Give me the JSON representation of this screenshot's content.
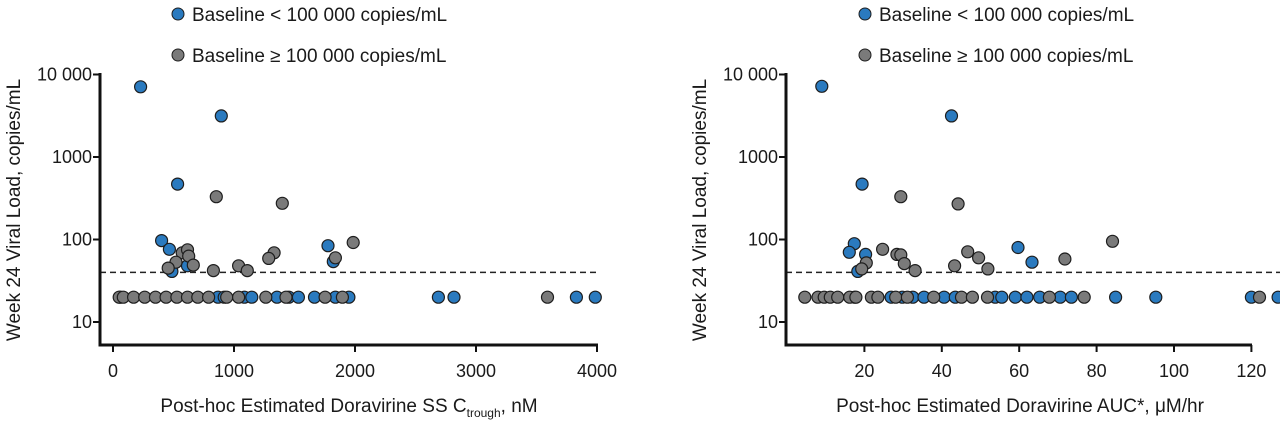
{
  "colors": {
    "below": "#2a7abf",
    "above": "#7a7a7a",
    "outline": "#1e1e1e"
  },
  "chart_data": [
    {
      "type": "scatter",
      "ylabel": "Week 24 Viral Load, copies/mL",
      "xlabel_prefix": "Post-hoc Estimated Doravirine SS C",
      "xlabel_sub": "trough",
      "xlabel_suffix": ", nM",
      "yscale": "log",
      "ylim": [
        5.2,
        10000
      ],
      "xlim": [
        -100,
        4000
      ],
      "xticks": [
        0,
        1000,
        2000,
        3000,
        4000
      ],
      "xtick_labels": [
        "0",
        "1000",
        "2000",
        "3000",
        "4000"
      ],
      "yticks": [
        10,
        100,
        1000,
        10000
      ],
      "ytick_labels": [
        "10",
        "100",
        "1000",
        "10 000"
      ],
      "reference_line": 40,
      "legend": [
        "Baseline < 100 000 copies/mL",
        "Baseline ≥ 100 000 copies/mL"
      ],
      "legend_position": "top",
      "series": [
        {
          "name": "Baseline < 100 000 copies/mL",
          "color_key": "below",
          "x": [
            228,
            895,
            534,
            402,
            466,
            1777,
            1821,
            616,
            487,
            60,
            868,
            919,
            1086,
            1147,
            1355,
            1454,
            1532,
            1665,
            1838,
            1950,
            2689,
            2818,
            3830,
            3986
          ],
          "y": [
            7100,
            3150,
            470,
            97,
            76,
            84,
            54,
            48,
            41,
            20,
            20,
            20,
            20,
            20,
            20,
            20,
            20,
            20,
            20,
            20,
            20,
            20,
            20,
            20
          ]
        },
        {
          "name": "Baseline ≥ 100 000 copies/mL",
          "color_key": "above",
          "x": [
            854,
            1399,
            1985,
            1331,
            1287,
            1838,
            572,
            616,
            626,
            664,
            521,
            456,
            830,
            1038,
            1110,
            51,
            85,
            170,
            262,
            351,
            439,
            528,
            616,
            701,
            790,
            940,
            1038,
            1263,
            1430,
            1753,
            1896,
            3591
          ],
          "y": [
            330,
            275,
            92,
            69,
            59,
            60,
            69,
            75,
            63,
            49,
            53,
            45,
            42,
            48,
            42,
            20,
            20,
            20,
            20,
            20,
            20,
            20,
            20,
            20,
            20,
            20,
            20,
            20,
            20,
            20,
            20,
            20
          ]
        }
      ]
    },
    {
      "type": "scatter",
      "ylabel": "Week 24 Viral Load, copies/mL",
      "xlabel_prefix": "Post-hoc Estimated Doravirine AUC*, μM/hr",
      "xlabel_sub": "",
      "xlabel_suffix": "",
      "yscale": "log",
      "ylim": [
        5.2,
        10000
      ],
      "xlim": [
        0,
        120
      ],
      "xticks": [
        20,
        40,
        60,
        80,
        100,
        120
      ],
      "xtick_labels": [
        "20",
        "40",
        "60",
        "80",
        "100",
        "120"
      ],
      "yticks": [
        10,
        100,
        1000,
        10000
      ],
      "ytick_labels": [
        "10",
        "100",
        "1000",
        "10 000"
      ],
      "reference_line": 40,
      "legend": [
        "Baseline < 100 000 copies/mL",
        "Baseline ≥ 100 000 copies/mL"
      ],
      "legend_position": "top",
      "series": [
        {
          "name": "Baseline < 100 000 copies/mL",
          "color_key": "below",
          "x": [
            9.0,
            42.5,
            19.4,
            17.4,
            59.7,
            16.1,
            20.3,
            63.3,
            18.3,
            17.5,
            26.9,
            29.8,
            32.5,
            35.4,
            40.6,
            43.5,
            53.8,
            55.5,
            59.0,
            62.0,
            65.3,
            70.6,
            73.5,
            84.9,
            95.3,
            120.0,
            126.9
          ],
          "y": [
            7200,
            3150,
            470,
            89,
            80,
            70,
            66,
            53,
            41,
            20,
            20,
            20,
            20,
            20,
            20,
            20,
            20,
            20,
            20,
            20,
            20,
            20,
            20,
            20,
            20,
            20,
            20
          ]
        },
        {
          "name": "Baseline ≥ 100 000 copies/mL",
          "color_key": "above",
          "x": [
            29.4,
            44.2,
            84.1,
            24.7,
            28.4,
            29.4,
            46.7,
            49.5,
            71.8,
            20.5,
            30.3,
            43.3,
            51.9,
            33.1,
            19.3,
            4.6,
            8.0,
            9.6,
            11.2,
            13.1,
            16.2,
            17.8,
            21.8,
            23.5,
            28.1,
            31.1,
            37.9,
            45.1,
            47.9,
            51.8,
            67.8,
            76.8,
            122.1
          ],
          "y": [
            330,
            270,
            95,
            76,
            66,
            65,
            71,
            60,
            58,
            52,
            51,
            48,
            44,
            42,
            44,
            20,
            20,
            20,
            20,
            20,
            20,
            20,
            20,
            20,
            20,
            20,
            20,
            20,
            20,
            20,
            20,
            20,
            20
          ]
        }
      ]
    }
  ]
}
